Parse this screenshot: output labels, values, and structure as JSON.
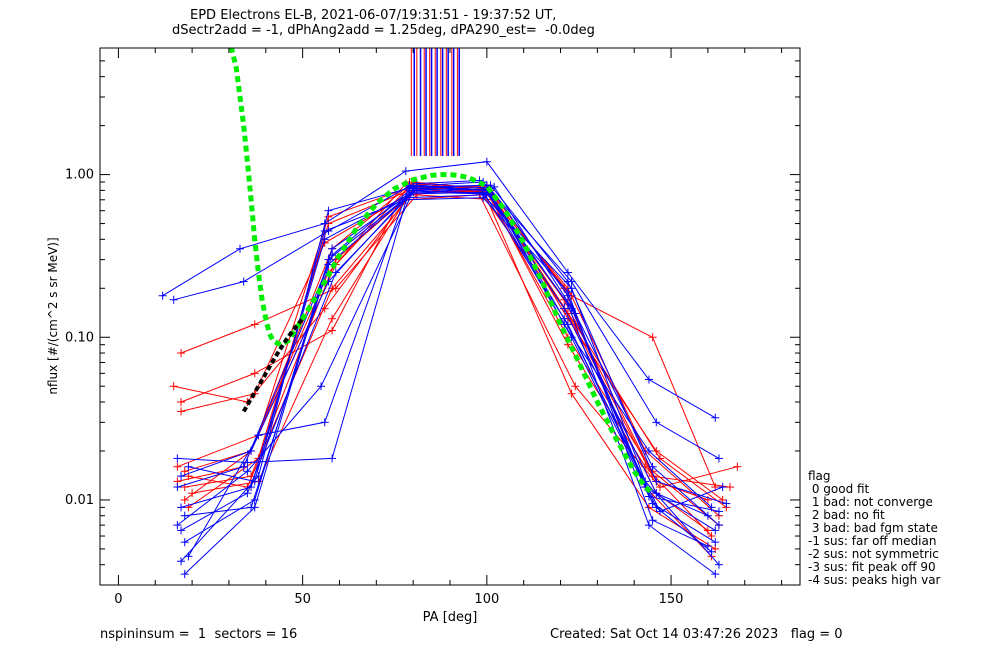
{
  "header": {
    "title_line1": "EPD Electrons EL-B, 2021-06-07/19:31:51 - 19:37:52 UT,",
    "title_line2": "dSectr2add = -1, dPhAng2add = 1.25deg, dPA290_est=  -0.0deg"
  },
  "footer": {
    "left": "nspininsum =  1  sectors = 16",
    "right": "Created: Sat Oct 14 03:47:26 2023   flag = 0"
  },
  "legend": {
    "title": "flag",
    "items": [
      " 0 good fit",
      " 1 bad: not converge",
      " 2 bad: no fit",
      " 3 bad: bad fgm state",
      "-1 sus: far off median",
      "-2 sus: not symmetric",
      "-3 sus: fit peak off 90",
      "-4 sus: peaks high var"
    ],
    "placement": "right-bottom"
  },
  "colors": {
    "series_red": "#ff0000",
    "series_blue": "#0000ff",
    "fit_green": "#00ee00",
    "fit_black": "#000000",
    "axis": "#000000"
  },
  "chart_data": {
    "type": "line",
    "xlabel": "PA [deg]",
    "ylabel": "nflux [#/(cm^2 s sr MeV)]",
    "xlim": [
      -5,
      185
    ],
    "ylim": [
      0.003,
      6
    ],
    "ylog": true,
    "x_ticks": [
      0,
      50,
      100,
      150
    ],
    "x_tick_labels": [
      "0",
      "50",
      "100",
      "150"
    ],
    "y_ticks": [
      0.01,
      0.1,
      1.0
    ],
    "y_tick_labels": [
      "0.01",
      "0.10",
      "1.00"
    ],
    "grid": false,
    "series": [
      {
        "color": "red",
        "points": [
          [
            16,
            0.013
          ],
          [
            34,
            0.016
          ],
          [
            57,
            0.25
          ],
          [
            79,
            0.85
          ],
          [
            100,
            0.78
          ],
          [
            122,
            0.2
          ],
          [
            143,
            0.02
          ],
          [
            163,
            0.008
          ]
        ]
      },
      {
        "color": "red",
        "points": [
          [
            18,
            0.015
          ],
          [
            36,
            0.02
          ],
          [
            58,
            0.35
          ],
          [
            80,
            0.9
          ],
          [
            99,
            0.82
          ],
          [
            121,
            0.17
          ],
          [
            146,
            0.013
          ],
          [
            160,
            0.01
          ]
        ]
      },
      {
        "color": "red",
        "points": [
          [
            17,
            0.08
          ],
          [
            37,
            0.12
          ],
          [
            59,
            0.2
          ],
          [
            81,
            0.75
          ],
          [
            102,
            0.7
          ],
          [
            123,
            0.18
          ],
          [
            145,
            0.1
          ],
          [
            162,
            0.012
          ]
        ]
      },
      {
        "color": "red",
        "points": [
          [
            15,
            0.05
          ],
          [
            35,
            0.04
          ],
          [
            56,
            0.15
          ],
          [
            78,
            0.7
          ],
          [
            98,
            0.75
          ],
          [
            124,
            0.05
          ],
          [
            147,
            0.012
          ],
          [
            168,
            0.016
          ]
        ]
      },
      {
        "color": "red",
        "points": [
          [
            19,
            0.009
          ],
          [
            38,
            0.018
          ],
          [
            57,
            0.5
          ],
          [
            79,
            0.8
          ],
          [
            100,
            0.85
          ],
          [
            121,
            0.2
          ],
          [
            143,
            0.012
          ],
          [
            161,
            0.0045
          ]
        ]
      },
      {
        "color": "red",
        "points": [
          [
            18,
            0.012
          ],
          [
            36,
            0.014
          ],
          [
            59,
            0.3
          ],
          [
            80,
            0.78
          ],
          [
            101,
            0.8
          ],
          [
            122,
            0.13
          ],
          [
            146,
            0.02
          ],
          [
            164,
            0.01
          ]
        ]
      },
      {
        "color": "red",
        "points": [
          [
            17,
            0.04
          ],
          [
            37,
            0.06
          ],
          [
            58,
            0.11
          ],
          [
            79,
            0.9
          ],
          [
            100,
            0.78
          ],
          [
            122,
            0.1
          ],
          [
            145,
            0.015
          ],
          [
            163,
            0.007
          ]
        ]
      },
      {
        "color": "red",
        "points": [
          [
            16,
            0.016
          ],
          [
            38,
            0.025
          ],
          [
            57,
            0.55
          ],
          [
            80,
            0.85
          ],
          [
            99,
            0.8
          ],
          [
            123,
            0.045
          ],
          [
            144,
            0.009
          ],
          [
            162,
            0.005
          ]
        ]
      },
      {
        "color": "red",
        "points": [
          [
            19,
            0.014
          ],
          [
            35,
            0.012
          ],
          [
            58,
            0.2
          ],
          [
            81,
            0.82
          ],
          [
            101,
            0.75
          ],
          [
            121,
            0.15
          ],
          [
            146,
            0.011
          ],
          [
            160,
            0.0065
          ]
        ]
      },
      {
        "color": "red",
        "points": [
          [
            18,
            0.01
          ],
          [
            36,
            0.02
          ],
          [
            59,
            0.28
          ],
          [
            78,
            0.88
          ],
          [
            100,
            0.82
          ],
          [
            124,
            0.12
          ],
          [
            147,
            0.018
          ],
          [
            165,
            0.009
          ]
        ]
      },
      {
        "color": "red",
        "points": [
          [
            17,
            0.035
          ],
          [
            37,
            0.045
          ],
          [
            56,
            0.38
          ],
          [
            79,
            0.76
          ],
          [
            98,
            0.79
          ],
          [
            122,
            0.14
          ],
          [
            145,
            0.014
          ],
          [
            166,
            0.012
          ]
        ]
      },
      {
        "color": "red",
        "points": [
          [
            20,
            0.011
          ],
          [
            38,
            0.013
          ],
          [
            58,
            0.13
          ],
          [
            80,
            0.83
          ],
          [
            100,
            0.8
          ],
          [
            122,
            0.09
          ],
          [
            143,
            0.016
          ],
          [
            161,
            0.006
          ]
        ]
      },
      {
        "color": "blue",
        "points": [
          [
            12,
            0.18
          ],
          [
            33,
            0.35
          ],
          [
            56,
            0.5
          ],
          [
            78,
            1.05
          ],
          [
            100,
            1.2
          ],
          [
            122,
            0.25
          ],
          [
            144,
            0.055
          ],
          [
            162,
            0.032
          ]
        ]
      },
      {
        "color": "blue",
        "points": [
          [
            15,
            0.17
          ],
          [
            34,
            0.22
          ],
          [
            57,
            0.45
          ],
          [
            79,
            0.85
          ],
          [
            99,
            0.9
          ],
          [
            123,
            0.22
          ],
          [
            146,
            0.03
          ],
          [
            163,
            0.018
          ]
        ]
      },
      {
        "color": "blue",
        "points": [
          [
            16,
            0.018
          ],
          [
            35,
            0.017
          ],
          [
            58,
            0.018
          ],
          [
            79,
            0.82
          ],
          [
            100,
            0.86
          ],
          [
            121,
            0.12
          ],
          [
            144,
            0.02
          ],
          [
            161,
            0.009
          ]
        ]
      },
      {
        "color": "blue",
        "points": [
          [
            17,
            0.009
          ],
          [
            36,
            0.012
          ],
          [
            56,
            0.4
          ],
          [
            80,
            0.78
          ],
          [
            101,
            0.82
          ],
          [
            122,
            0.18
          ],
          [
            145,
            0.0095
          ],
          [
            162,
            0.0055
          ]
        ]
      },
      {
        "color": "blue",
        "points": [
          [
            18,
            0.0055
          ],
          [
            37,
            0.01
          ],
          [
            57,
            0.3
          ],
          [
            78,
            0.72
          ],
          [
            99,
            0.75
          ],
          [
            123,
            0.2
          ],
          [
            143,
            0.013
          ],
          [
            163,
            0.004
          ]
        ]
      },
      {
        "color": "blue",
        "points": [
          [
            16,
            0.007
          ],
          [
            35,
            0.015
          ],
          [
            55,
            0.05
          ],
          [
            81,
            0.88
          ],
          [
            98,
            0.92
          ],
          [
            121,
            0.15
          ],
          [
            146,
            0.011
          ],
          [
            160,
            0.008
          ]
        ]
      },
      {
        "color": "blue",
        "points": [
          [
            19,
            0.0045
          ],
          [
            38,
            0.025
          ],
          [
            56,
            0.03
          ],
          [
            79,
            0.86
          ],
          [
            100,
            0.8
          ],
          [
            122,
            0.16
          ],
          [
            144,
            0.007
          ],
          [
            162,
            0.0035
          ]
        ]
      },
      {
        "color": "blue",
        "points": [
          [
            17,
            0.014
          ],
          [
            36,
            0.02
          ],
          [
            57,
            0.22
          ],
          [
            80,
            0.8
          ],
          [
            102,
            0.84
          ],
          [
            124,
            0.14
          ],
          [
            145,
            0.016
          ],
          [
            163,
            0.007
          ]
        ]
      },
      {
        "color": "blue",
        "points": [
          [
            18,
            0.0035
          ],
          [
            37,
            0.009
          ],
          [
            58,
            0.35
          ],
          [
            79,
            0.76
          ],
          [
            99,
            0.78
          ],
          [
            122,
            0.12
          ],
          [
            146,
            0.009
          ],
          [
            161,
            0.0048
          ]
        ]
      },
      {
        "color": "blue",
        "points": [
          [
            16,
            0.012
          ],
          [
            34,
            0.016
          ],
          [
            57,
            0.28
          ],
          [
            81,
            0.82
          ],
          [
            100,
            0.8
          ],
          [
            123,
            0.1
          ],
          [
            143,
            0.012
          ],
          [
            162,
            0.0065
          ]
        ]
      },
      {
        "color": "blue",
        "points": [
          [
            17,
            0.0065
          ],
          [
            35,
            0.011
          ],
          [
            59,
            0.25
          ],
          [
            80,
            0.78
          ],
          [
            101,
            0.76
          ],
          [
            121,
            0.13
          ],
          [
            147,
            0.0085
          ],
          [
            164,
            0.012
          ]
        ]
      },
      {
        "color": "blue",
        "points": [
          [
            19,
            0.016
          ],
          [
            37,
            0.013
          ],
          [
            56,
            0.45
          ],
          [
            78,
            0.7
          ],
          [
            99,
            0.72
          ],
          [
            122,
            0.19
          ],
          [
            145,
            0.0075
          ],
          [
            160,
            0.0052
          ]
        ]
      },
      {
        "color": "blue",
        "points": [
          [
            18,
            0.008
          ],
          [
            36,
            0.009
          ],
          [
            58,
            0.32
          ],
          [
            79,
            0.8
          ],
          [
            100,
            0.77
          ],
          [
            123,
            0.15
          ],
          [
            144,
            0.0105
          ],
          [
            163,
            0.0085
          ]
        ]
      },
      {
        "color": "blue",
        "points": [
          [
            17,
            0.0042
          ],
          [
            38,
            0.014
          ],
          [
            57,
            0.6
          ],
          [
            80,
            0.84
          ],
          [
            101,
            0.86
          ],
          [
            122,
            0.22
          ],
          [
            146,
            0.013
          ],
          [
            165,
            0.0095
          ]
        ]
      }
    ],
    "fit_green": {
      "x": [
        30,
        32,
        34,
        35,
        36,
        37,
        38,
        39,
        40,
        41,
        42,
        44,
        46,
        48,
        50,
        55,
        60,
        65,
        70,
        75,
        80,
        85,
        88,
        90,
        92,
        95,
        100,
        105,
        110,
        115,
        120,
        125,
        130,
        135,
        140,
        143,
        145
      ],
      "y": [
        7.0,
        4.5,
        2.0,
        1.2,
        0.7,
        0.4,
        0.25,
        0.17,
        0.13,
        0.105,
        0.095,
        0.09,
        0.095,
        0.11,
        0.13,
        0.2,
        0.32,
        0.48,
        0.66,
        0.82,
        0.93,
        0.99,
        1.0,
        1.0,
        0.99,
        0.96,
        0.85,
        0.6,
        0.38,
        0.22,
        0.12,
        0.07,
        0.04,
        0.024,
        0.015,
        0.012,
        0.011
      ]
    },
    "fit_black": {
      "x": [
        34,
        36,
        38,
        40,
        42,
        44,
        46,
        48,
        50
      ],
      "y": [
        0.035,
        0.042,
        0.05,
        0.06,
        0.072,
        0.085,
        0.1,
        0.115,
        0.13
      ]
    },
    "vertical_markers": {
      "red_x": [
        79.5,
        81,
        83,
        84.5,
        86,
        87.5,
        89,
        90.5,
        92
      ],
      "blue_x": [
        80.3,
        82,
        83.5,
        85,
        86.5,
        88,
        89.5,
        91,
        92.5
      ]
    }
  }
}
